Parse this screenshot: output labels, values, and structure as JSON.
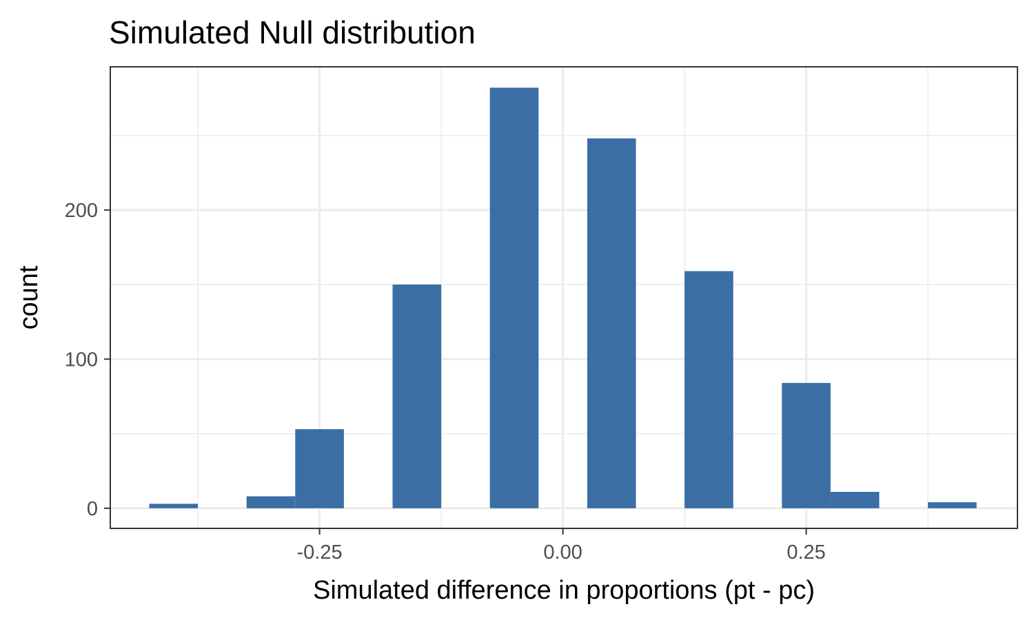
{
  "chart_data": {
    "type": "bar",
    "title": "Simulated Null distribution",
    "xlabel": "Simulated difference in proportions (pt - pc)",
    "ylabel": "count",
    "x_ticks": [
      {
        "value": -0.25,
        "label": "-0.25"
      },
      {
        "value": 0.0,
        "label": "0.00"
      },
      {
        "value": 0.25,
        "label": "0.25"
      }
    ],
    "y_ticks": [
      {
        "value": 0,
        "label": "0"
      },
      {
        "value": 100,
        "label": "100"
      },
      {
        "value": 200,
        "label": "200"
      }
    ],
    "xlim": [
      -0.465,
      0.467
    ],
    "ylim": [
      -13.5,
      296
    ],
    "grid": true,
    "bin_width": 0.05,
    "bins": [
      {
        "x_start": -0.425,
        "x_end": -0.375,
        "count": 3
      },
      {
        "x_start": -0.325,
        "x_end": -0.275,
        "count": 8
      },
      {
        "x_start": -0.275,
        "x_end": -0.225,
        "count": 53
      },
      {
        "x_start": -0.175,
        "x_end": -0.125,
        "count": 150
      },
      {
        "x_start": -0.075,
        "x_end": -0.025,
        "count": 282
      },
      {
        "x_start": 0.025,
        "x_end": 0.075,
        "count": 248
      },
      {
        "x_start": 0.125,
        "x_end": 0.175,
        "count": 159
      },
      {
        "x_start": 0.225,
        "x_end": 0.275,
        "count": 84
      },
      {
        "x_start": 0.275,
        "x_end": 0.325,
        "count": 11
      },
      {
        "x_start": 0.375,
        "x_end": 0.425,
        "count": 4
      }
    ],
    "colors": {
      "bar_fill": "#3a6ea5",
      "panel_border": "#333333",
      "grid_major": "#ebebeb",
      "grid_minor": "#ebebeb",
      "tick_text": "#4d4d4d",
      "text": "#000000"
    }
  }
}
